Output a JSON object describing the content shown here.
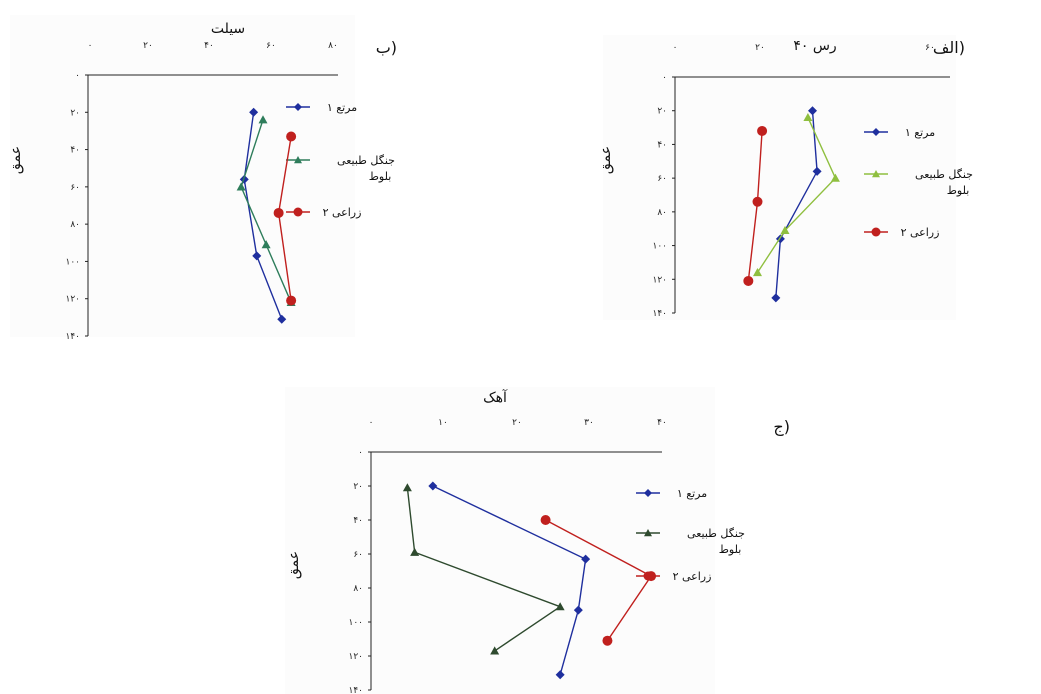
{
  "chart_data": [
    {
      "type": "line",
      "panel_label": "الف)",
      "xlabel": "۴۰ رس",
      "ylabel": "عمق",
      "x_ticks": [
        "۰",
        "۲۰",
        "",
        "۶۰"
      ],
      "y_ticks": [
        "۰",
        "۲۰",
        "۴۰",
        "۶۰",
        "۸۰",
        "۱۰۰",
        "۱۲۰",
        "۱۴۰"
      ],
      "xlim": [
        0,
        60
      ],
      "ylim": [
        0,
        140
      ],
      "series": [
        {
          "name": "مرتع ۱",
          "color": "#1f2f9e",
          "marker": "diamond",
          "x": [
            30,
            31,
            23,
            22
          ],
          "y": [
            20,
            56,
            96,
            131
          ]
        },
        {
          "name": "جنگل طبیعی بلوط",
          "color": "#8fbf3f",
          "marker": "triangle",
          "x": [
            29,
            35,
            24,
            18
          ],
          "y": [
            24,
            60,
            91,
            116
          ]
        },
        {
          "name": "زراعی ۲",
          "color": "#c0201e",
          "marker": "circle",
          "x": [
            19,
            18,
            16
          ],
          "y": [
            32,
            74,
            121
          ]
        }
      ]
    },
    {
      "type": "line",
      "panel_label": "ب)",
      "xlabel": "سیلت",
      "ylabel": "عمق",
      "x_ticks": [
        "۰",
        "۲۰",
        "۴۰",
        "۶۰",
        "۸۰"
      ],
      "y_ticks": [
        "۰",
        "۲۰",
        "۴۰",
        "۶۰",
        "۸۰",
        "۱۰۰",
        "۱۲۰",
        "۱۴۰"
      ],
      "xlim": [
        0,
        80
      ],
      "ylim": [
        0,
        140
      ],
      "series": [
        {
          "name": "مرتع ۱",
          "color": "#1f2f9e",
          "marker": "diamond",
          "x": [
            53,
            50,
            54,
            62
          ],
          "y": [
            20,
            56,
            97,
            131
          ]
        },
        {
          "name": "جنگل طبیعی بلوط",
          "color": "#2e7d5b",
          "marker": "triangle",
          "x": [
            56,
            49,
            57,
            65
          ],
          "y": [
            24,
            60,
            91,
            122
          ]
        },
        {
          "name": "زراعی ۲",
          "color": "#c0201e",
          "marker": "circle",
          "x": [
            65,
            61,
            65
          ],
          "y": [
            33,
            74,
            121
          ]
        }
      ]
    },
    {
      "type": "line",
      "panel_label": "ج)",
      "xlabel": "آهک",
      "ylabel": "عمق",
      "x_ticks": [
        "۰",
        "۱۰",
        "۲۰",
        "۳۰",
        "۴۰"
      ],
      "y_ticks": [
        "۰",
        "۲۰",
        "۴۰",
        "۶۰",
        "۸۰",
        "۱۰۰",
        "۱۲۰",
        "۱۴۰"
      ],
      "xlim": [
        0,
        40
      ],
      "ylim": [
        0,
        140
      ],
      "series": [
        {
          "name": "مرتع ۱",
          "color": "#1f2f9e",
          "marker": "diamond",
          "x": [
            8.5,
            29.5,
            28.5,
            26
          ],
          "y": [
            20,
            63,
            93,
            131
          ]
        },
        {
          "name": "جنگل طبیعی بلوط",
          "color": "#2e4a2e",
          "marker": "triangle",
          "x": [
            5,
            6,
            26,
            17
          ],
          "y": [
            21,
            59,
            91,
            117
          ]
        },
        {
          "name": "زراعی ۲",
          "color": "#c0201e",
          "marker": "circle",
          "x": [
            24,
            38.5,
            32.5
          ],
          "y": [
            40,
            73,
            111
          ]
        }
      ]
    }
  ]
}
